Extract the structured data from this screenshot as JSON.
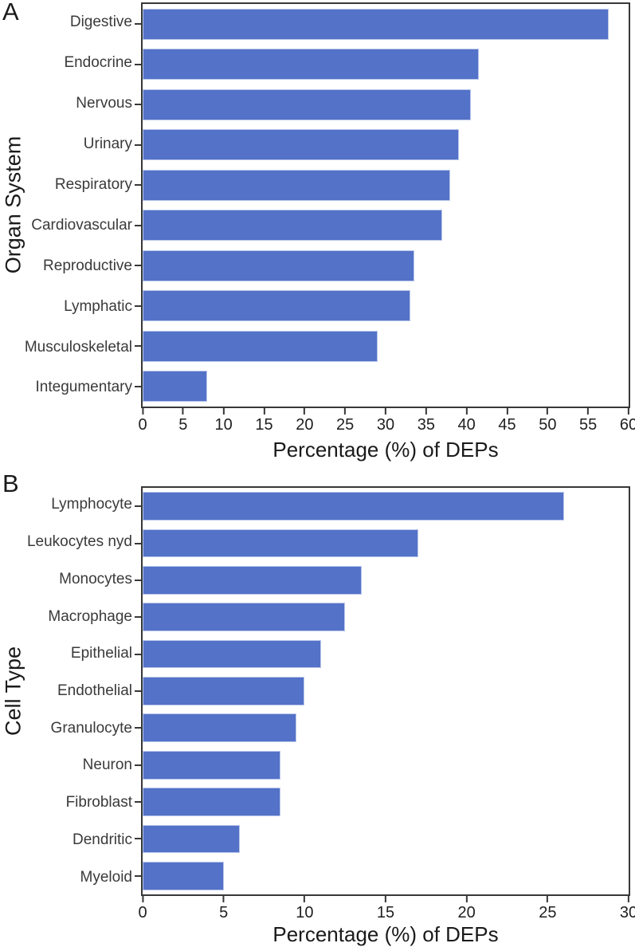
{
  "chart_data": [
    {
      "type": "bar",
      "orientation": "horizontal",
      "panel_label": "A",
      "ylabel": "Organ System",
      "xlabel": "Percentage (%) of DEPs",
      "xlim": [
        0,
        60
      ],
      "xticks": [
        0,
        5,
        10,
        15,
        20,
        25,
        30,
        35,
        40,
        45,
        50,
        55,
        60
      ],
      "categories": [
        "Digestive",
        "Endocrine",
        "Nervous",
        "Urinary",
        "Respiratory",
        "Cardiovascular",
        "Reproductive",
        "Lymphatic",
        "Musculoskeletal",
        "Integumentary"
      ],
      "values": [
        57.5,
        41.5,
        40.5,
        39,
        38,
        37,
        33.5,
        33,
        29,
        8
      ],
      "grid": false,
      "legend_position": "none"
    },
    {
      "type": "bar",
      "orientation": "horizontal",
      "panel_label": "B",
      "ylabel": "Cell Type",
      "xlabel": "Percentage (%) of DEPs",
      "xlim": [
        0,
        30
      ],
      "xticks": [
        0,
        5,
        10,
        15,
        20,
        25,
        30
      ],
      "categories": [
        "Lymphocyte",
        "Leukocytes nyd",
        "Monocytes",
        "Macrophage",
        "Epithelial",
        "Endothelial",
        "Granulocyte",
        "Neuron",
        "Fibroblast",
        "Dendritic",
        "Myeloid"
      ],
      "values": [
        26,
        17,
        13.5,
        12.5,
        11,
        10,
        9.5,
        8.5,
        8.5,
        6,
        5
      ],
      "grid": false,
      "legend_position": "none"
    }
  ],
  "style": {
    "bar_fill": "#5372c8",
    "bar_edge": "#b9c6ea",
    "axis_color": "#383838",
    "category_label_color": "#3a3a3a",
    "tick_label_color": "#1f1f1f",
    "title_color": "#1a1a1a",
    "background": "#ffffff"
  }
}
